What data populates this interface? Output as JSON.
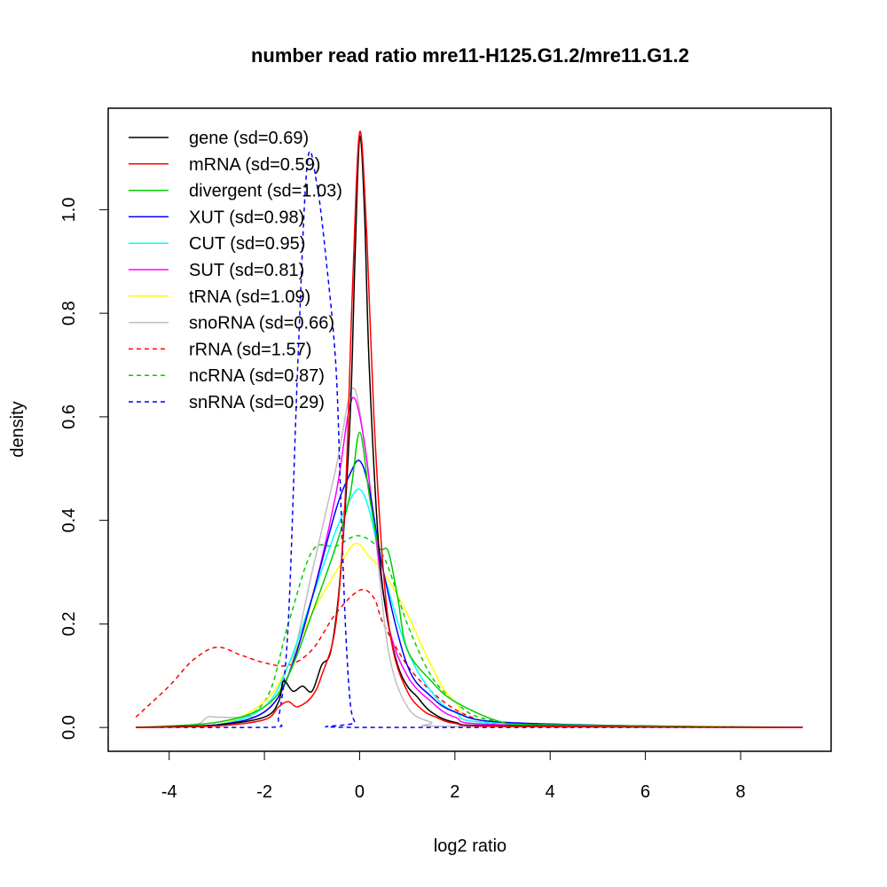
{
  "chart_data": {
    "type": "line",
    "title": "number read ratio mre11-H125.G1.2/mre11.G1.2",
    "xlabel": "log2 ratio",
    "ylabel": "density",
    "xlim": [
      -5.28,
      9.9
    ],
    "ylim": [
      -0.046,
      1.196
    ],
    "xticks": [
      -4,
      -2,
      0,
      2,
      4,
      6,
      8
    ],
    "xtick_labels": [
      "-4",
      "-2",
      "0",
      "2",
      "4",
      "6",
      "8"
    ],
    "yticks": [
      0,
      0.2,
      0.4,
      0.6,
      0.8,
      1.0
    ],
    "ytick_labels": [
      "0.0",
      "0.2",
      "0.4",
      "0.6",
      "0.8",
      "1.0"
    ],
    "grid": false,
    "legend_position": "top-left",
    "series": [
      {
        "name": "gene (sd=0.69)",
        "color": "#000000",
        "dash": false,
        "x": [
          -4.7,
          -3,
          -2,
          -1.7,
          -1.6,
          -1.4,
          -1.2,
          -1,
          -0.8,
          -0.6,
          -0.4,
          -0.2,
          -0.1,
          0,
          0.1,
          0.2,
          0.4,
          0.6,
          0.8,
          1,
          1.2,
          1.5,
          2,
          3,
          9.3
        ],
        "y": [
          0,
          0.005,
          0.02,
          0.05,
          0.09,
          0.07,
          0.08,
          0.07,
          0.12,
          0.15,
          0.3,
          0.6,
          0.9,
          1.14,
          1.0,
          0.7,
          0.35,
          0.2,
          0.12,
          0.08,
          0.06,
          0.03,
          0.01,
          0.003,
          0
        ]
      },
      {
        "name": "mRNA (sd=0.59)",
        "color": "#ff0000",
        "dash": false,
        "x": [
          -4.7,
          -3,
          -2,
          -1.7,
          -1.5,
          -1.3,
          -1,
          -0.8,
          -0.5,
          -0.3,
          -0.15,
          0,
          0.15,
          0.3,
          0.5,
          0.7,
          1,
          1.3,
          1.6,
          2,
          3,
          9.3
        ],
        "y": [
          0,
          0.003,
          0.015,
          0.04,
          0.05,
          0.04,
          0.06,
          0.1,
          0.2,
          0.45,
          0.85,
          1.15,
          0.95,
          0.6,
          0.3,
          0.15,
          0.07,
          0.035,
          0.02,
          0.008,
          0.002,
          0
        ]
      },
      {
        "name": "divergent (sd=1.03)",
        "color": "#00cd00",
        "dash": false,
        "x": [
          -4.7,
          -3,
          -2,
          -1.5,
          -1,
          -0.5,
          -0.2,
          0,
          0.2,
          0.4,
          0.6,
          0.8,
          1,
          1.5,
          2,
          3,
          4,
          9.3
        ],
        "y": [
          0,
          0.01,
          0.04,
          0.1,
          0.22,
          0.35,
          0.45,
          0.57,
          0.45,
          0.35,
          0.34,
          0.25,
          0.15,
          0.09,
          0.05,
          0.01,
          0.005,
          0
        ]
      },
      {
        "name": "XUT (sd=0.98)",
        "color": "#0000ff",
        "dash": false,
        "x": [
          -4.7,
          -3,
          -2,
          -1.5,
          -1,
          -0.5,
          -0.2,
          0,
          0.2,
          0.5,
          1,
          1.5,
          2,
          3,
          6.7,
          9.3
        ],
        "y": [
          0,
          0.005,
          0.03,
          0.1,
          0.25,
          0.42,
          0.49,
          0.515,
          0.46,
          0.3,
          0.12,
          0.06,
          0.03,
          0.01,
          0.002,
          0
        ]
      },
      {
        "name": "CUT (sd=0.95)",
        "color": "#00ffff",
        "dash": false,
        "x": [
          -4.7,
          -3,
          -2,
          -1.5,
          -1,
          -0.5,
          -0.2,
          0,
          0.2,
          0.5,
          1,
          1.5,
          2,
          3,
          9.3
        ],
        "y": [
          0,
          0.005,
          0.04,
          0.12,
          0.25,
          0.38,
          0.44,
          0.46,
          0.42,
          0.3,
          0.15,
          0.07,
          0.03,
          0.008,
          0
        ]
      },
      {
        "name": "SUT (sd=0.81)",
        "color": "#ff00ff",
        "dash": false,
        "x": [
          -4.7,
          -3,
          -2,
          -1.5,
          -1,
          -0.5,
          -0.25,
          -0.1,
          0.1,
          0.3,
          0.6,
          1,
          1.5,
          2,
          3,
          9.3
        ],
        "y": [
          0,
          0.005,
          0.03,
          0.1,
          0.25,
          0.45,
          0.6,
          0.635,
          0.55,
          0.4,
          0.2,
          0.1,
          0.05,
          0.02,
          0.005,
          0
        ]
      },
      {
        "name": "tRNA (sd=1.09)",
        "color": "#ffff00",
        "dash": false,
        "x": [
          -4.7,
          -3,
          -2,
          -1.5,
          -1,
          -0.5,
          -0.1,
          0.2,
          0.5,
          1,
          1.5,
          2,
          3,
          9.3
        ],
        "y": [
          0,
          0.005,
          0.05,
          0.12,
          0.22,
          0.3,
          0.355,
          0.33,
          0.3,
          0.22,
          0.12,
          0.05,
          0.01,
          0
        ]
      },
      {
        "name": "snoRNA (sd=0.66)",
        "color": "#bebebe",
        "dash": false,
        "x": [
          -4.7,
          -3.5,
          -3.2,
          -3,
          -2.5,
          -2,
          -1.5,
          -1,
          -0.5,
          -0.15,
          0.1,
          0.3,
          0.6,
          1,
          1.5,
          2,
          9.3
        ],
        "y": [
          0,
          0.005,
          0.02,
          0.02,
          0.02,
          0.03,
          0.1,
          0.3,
          0.5,
          0.655,
          0.55,
          0.4,
          0.15,
          0.04,
          0.01,
          0.002,
          0
        ]
      },
      {
        "name": "rRNA (sd=1.57)",
        "color": "#ff0000",
        "dash": true,
        "x": [
          -4.7,
          -4,
          -3.5,
          -3,
          -2.5,
          -2,
          -1.5,
          -1,
          -0.5,
          0,
          0.3,
          0.5,
          1,
          1.5,
          2,
          2.5,
          3,
          4.5
        ],
        "y": [
          0.02,
          0.08,
          0.13,
          0.155,
          0.14,
          0.125,
          0.12,
          0.15,
          0.22,
          0.265,
          0.25,
          0.2,
          0.12,
          0.07,
          0.035,
          0.015,
          0.005,
          0
        ]
      },
      {
        "name": "ncRNA (sd=0.87)",
        "color": "#00cd00",
        "dash": true,
        "x": [
          -4.7,
          -3,
          -2,
          -1.5,
          -1,
          -0.5,
          0,
          0.5,
          1,
          1.5,
          2,
          2.5,
          3.5,
          5
        ],
        "y": [
          0,
          0.005,
          0.05,
          0.2,
          0.34,
          0.35,
          0.37,
          0.33,
          0.2,
          0.1,
          0.05,
          0.02,
          0.005,
          0
        ]
      },
      {
        "name": "snRNA (sd=0.29)",
        "color": "#0000ff",
        "dash": true,
        "x": [
          -4.7,
          -1.9,
          -1.7,
          -1.5,
          -1.3,
          -1.1,
          -0.9,
          -0.7,
          -0.5,
          -0.4,
          -0.3,
          -0.2,
          -0.1,
          0,
          9.3
        ],
        "y": [
          0,
          0,
          0.02,
          0.2,
          0.7,
          1.09,
          1.05,
          0.9,
          0.7,
          0.45,
          0.2,
          0.05,
          0.01,
          0,
          0
        ]
      }
    ]
  }
}
